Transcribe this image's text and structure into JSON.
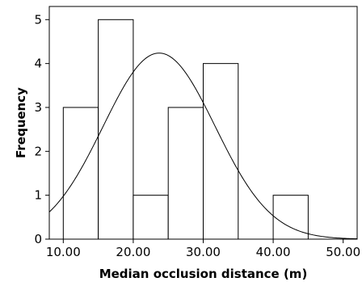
{
  "chart_data": {
    "type": "bar",
    "subtype": "histogram",
    "title": "",
    "xlabel": "Median occlusion distance (m)",
    "ylabel": "Frequency",
    "xlim": [
      8,
      52
    ],
    "ylim": [
      0,
      5.3
    ],
    "bins": [
      {
        "start": 10,
        "end": 15,
        "count": 3
      },
      {
        "start": 15,
        "end": 20,
        "count": 5
      },
      {
        "start": 20,
        "end": 25,
        "count": 1
      },
      {
        "start": 25,
        "end": 30,
        "count": 3
      },
      {
        "start": 30,
        "end": 35,
        "count": 4
      },
      {
        "start": 35,
        "end": 40,
        "count": 0
      },
      {
        "start": 40,
        "end": 45,
        "count": 1
      }
    ],
    "x_ticks": [
      10,
      20,
      30,
      40,
      50
    ],
    "x_tick_labels": [
      "10.00",
      "20.00",
      "30.00",
      "40.00",
      "50.00"
    ],
    "y_ticks": [
      0,
      1,
      2,
      3,
      4,
      5
    ],
    "y_tick_labels": [
      "0",
      "1",
      "2",
      "3",
      "4",
      "5"
    ],
    "normal_curve": {
      "mean": 23.7,
      "sd": 8.0,
      "n": 17,
      "bin_width": 5
    },
    "grid": false,
    "colors": {
      "bar_fill": "#ffffff",
      "bar_stroke": "#000000",
      "curve": "#000000"
    }
  }
}
